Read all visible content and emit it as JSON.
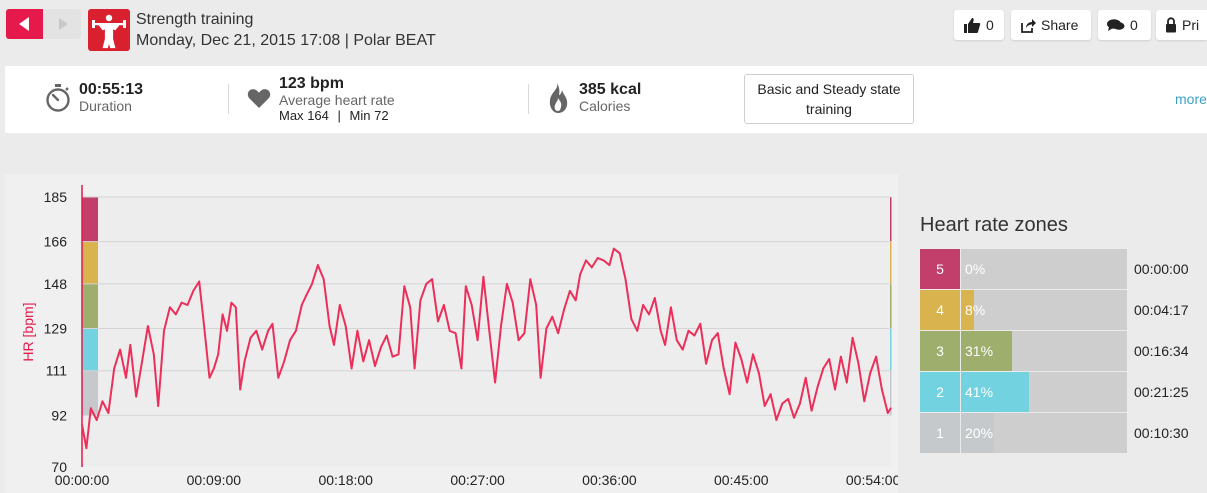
{
  "header": {
    "title": "Strength training",
    "subtitle": "Monday, Dec 21, 2015 17:08 | Polar BEAT",
    "like_count": "0",
    "share_label": "Share",
    "comment_count": "0",
    "print_label": "Pri"
  },
  "summary": {
    "duration": {
      "value": "00:55:13",
      "label": "Duration"
    },
    "heart_rate": {
      "value": "123 bpm",
      "label": "Average heart rate",
      "max_label": "Max",
      "max_value": "164",
      "separator": "|",
      "min_label": "Min",
      "min_value": "72"
    },
    "calories": {
      "value": "385 kcal",
      "label": "Calories"
    },
    "phase_line1": "Basic and Steady state",
    "phase_line2": "training",
    "more_label": "more"
  },
  "colors": {
    "brand_red": "#e5194b",
    "hr_line": "#ec2f5a",
    "zone5": "#c13f6a",
    "zone4": "#d8b34e",
    "zone3": "#9eae6d",
    "zone2": "#72d2e0",
    "zone1": "#c5c9cb",
    "link": "#3aa2c9"
  },
  "zones": {
    "title": "Heart rate zones",
    "items": [
      {
        "zone": "5",
        "percent": "0%",
        "fraction": 0.0,
        "time": "00:00:00",
        "color": "#c13f6a"
      },
      {
        "zone": "4",
        "percent": "8%",
        "fraction": 0.08,
        "time": "00:04:17",
        "color": "#d8b34e"
      },
      {
        "zone": "3",
        "percent": "31%",
        "fraction": 0.31,
        "time": "00:16:34",
        "color": "#9eae6d"
      },
      {
        "zone": "2",
        "percent": "41%",
        "fraction": 0.41,
        "time": "00:21:25",
        "color": "#72d2e0"
      },
      {
        "zone": "1",
        "percent": "20%",
        "fraction": 0.2,
        "time": "00:10:30",
        "color": "#c5c9cb"
      }
    ]
  },
  "chart_data": {
    "type": "line",
    "ylabel": "HR [bpm]",
    "ylim": [
      70,
      185
    ],
    "y_ticks": [
      185,
      166,
      148,
      129,
      111,
      92,
      70
    ],
    "x_ticks": [
      "00:00:00",
      "00:09:00",
      "00:18:00",
      "00:27:00",
      "00:36:00",
      "00:45:00",
      "00:54:00"
    ],
    "x_unit": "minutes",
    "xlim": [
      0,
      55.22
    ],
    "grid": true,
    "zone_bands": [
      {
        "zone": "5",
        "from": 166,
        "to": 185,
        "color": "#c13f6a"
      },
      {
        "zone": "4",
        "from": 148,
        "to": 166,
        "color": "#d8b34e"
      },
      {
        "zone": "3",
        "from": 129,
        "to": 148,
        "color": "#9eae6d"
      },
      {
        "zone": "2",
        "from": 111,
        "to": 129,
        "color": "#72d2e0"
      },
      {
        "zone": "1",
        "from": 92,
        "to": 111,
        "color": "#c5c9cb"
      }
    ],
    "series": [
      {
        "x": [
          0,
          0.3,
          0.6,
          1,
          1.4,
          1.8,
          2.2,
          2.6,
          3,
          3.3,
          3.7,
          4.1,
          4.5,
          4.9,
          5.2,
          5.6,
          6,
          6.4,
          6.8,
          7.2,
          7.6,
          8,
          8.3,
          8.7,
          9,
          9.3,
          9.6,
          9.9,
          10.2,
          10.5,
          10.8,
          11.1,
          11.5,
          11.9,
          12.3,
          12.7,
          13,
          13.4,
          13.8,
          14.2,
          14.6,
          15,
          15.3,
          15.7,
          16.1,
          16.5,
          16.9,
          17.2,
          17.6,
          18,
          18.4,
          18.8,
          19.2,
          19.6,
          20,
          20.4,
          20.8,
          21.2,
          21.6,
          22,
          22.4,
          22.7,
          23.1,
          23.5,
          23.9,
          24.3,
          24.7,
          25.1,
          25.5,
          25.9,
          26.2,
          26.6,
          27,
          27.4,
          27.8,
          28.2,
          28.6,
          29,
          29.4,
          29.8,
          30.2,
          30.6,
          31,
          31.3,
          31.7,
          32.1,
          32.5,
          32.9,
          33.3,
          33.7,
          34,
          34.4,
          34.8,
          35.2,
          35.6,
          36,
          36.3,
          36.7,
          37.1,
          37.5,
          37.9,
          38.3,
          38.7,
          39.1,
          39.5,
          39.8,
          40.2,
          40.6,
          41,
          41.4,
          41.8,
          42.2,
          42.6,
          43,
          43.4,
          43.8,
          44.2,
          44.6,
          45,
          45.4,
          45.8,
          46.2,
          46.6,
          47,
          47.4,
          47.8,
          48.2,
          48.6,
          49,
          49.4,
          49.8,
          50.2,
          50.6,
          51,
          51.4,
          51.8,
          52.2,
          52.6,
          53,
          53.4,
          53.8,
          54.2,
          54.6,
          55,
          55.2
        ],
        "values": [
          88,
          78,
          95,
          90,
          98,
          93,
          112,
          120,
          108,
          122,
          100,
          115,
          130,
          118,
          96,
          128,
          138,
          135,
          140,
          139,
          145,
          149,
          132,
          108,
          112,
          118,
          135,
          128,
          140,
          138,
          103,
          115,
          125,
          128,
          120,
          128,
          131,
          108,
          115,
          124,
          128,
          139,
          143,
          148,
          156,
          150,
          130,
          122,
          139,
          130,
          112,
          128,
          115,
          124,
          113,
          121,
          126,
          117,
          118,
          147,
          138,
          112,
          141,
          148,
          150,
          132,
          139,
          128,
          127,
          112,
          147,
          139,
          124,
          151,
          128,
          106,
          130,
          148,
          140,
          124,
          127,
          150,
          139,
          108,
          129,
          134,
          127,
          137,
          145,
          141,
          152,
          158,
          155,
          159,
          158,
          156,
          163,
          161,
          150,
          133,
          128,
          139,
          135,
          142,
          128,
          122,
          138,
          124,
          120,
          128,
          126,
          131,
          114,
          124,
          127,
          112,
          101,
          123,
          116,
          106,
          118,
          110,
          96,
          101,
          90,
          97,
          99,
          91,
          97,
          108,
          94,
          104,
          112,
          116,
          103,
          117,
          106,
          125,
          114,
          98,
          110,
          117,
          103,
          93,
          95
        ]
      }
    ]
  }
}
